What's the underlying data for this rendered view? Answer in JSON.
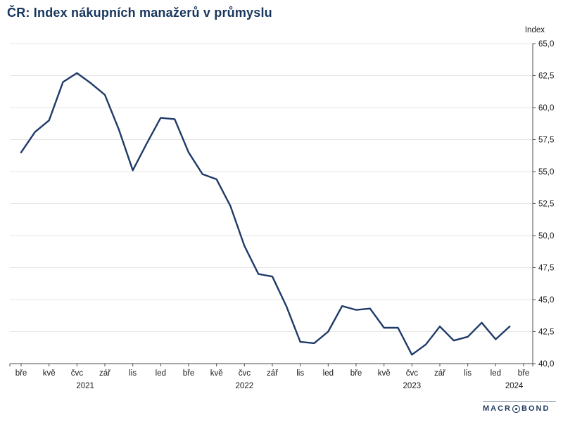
{
  "header": {
    "title": "ČR: Index nákupních manažerů v průmyslu",
    "axis_title": "Index"
  },
  "chart_data": {
    "type": "line",
    "title": "ČR: Index nákupních manažerů v průmyslu",
    "xlabel": "",
    "ylabel": "Index",
    "ylim": [
      40,
      65
    ],
    "grid": true,
    "legend_position": "none",
    "line_color": "#1f3a68",
    "x": [
      "2021-03",
      "2021-04",
      "2021-05",
      "2021-06",
      "2021-07",
      "2021-08",
      "2021-09",
      "2021-10",
      "2021-11",
      "2021-12",
      "2022-01",
      "2022-02",
      "2022-03",
      "2022-04",
      "2022-05",
      "2022-06",
      "2022-07",
      "2022-08",
      "2022-09",
      "2022-10",
      "2022-11",
      "2022-12",
      "2023-01",
      "2023-02",
      "2023-03",
      "2023-04",
      "2023-05",
      "2023-06",
      "2023-07",
      "2023-08",
      "2023-09",
      "2023-10",
      "2023-11",
      "2023-12",
      "2024-01",
      "2024-02"
    ],
    "series": [
      {
        "name": "Index nákupních manažerů v průmyslu",
        "color": "#1f3a68",
        "values": [
          56.5,
          58.1,
          59.0,
          62.0,
          62.7,
          61.9,
          61.0,
          58.3,
          55.1,
          57.2,
          59.2,
          59.1,
          56.5,
          54.8,
          54.4,
          52.3,
          49.2,
          47.0,
          46.8,
          44.5,
          41.7,
          41.6,
          42.5,
          44.5,
          44.2,
          44.3,
          42.8,
          42.8,
          40.7,
          41.5,
          42.9,
          41.8,
          42.1,
          43.2,
          41.9,
          42.9
        ]
      }
    ],
    "x_tick_labels": [
      "bře",
      "kvě",
      "čvc",
      "zář",
      "lis",
      "led",
      "bře",
      "kvě",
      "čvc",
      "zář",
      "lis",
      "led",
      "bře",
      "kvě",
      "čvc",
      "zář",
      "lis",
      "led",
      "bře"
    ],
    "year_labels": [
      "2021",
      "2022",
      "2023",
      "2024"
    ],
    "y_ticks": [
      {
        "value": 65.0,
        "label": "65,0"
      },
      {
        "value": 62.5,
        "label": "62,5"
      },
      {
        "value": 60.0,
        "label": "60,0"
      },
      {
        "value": 57.5,
        "label": "57,5"
      },
      {
        "value": 55.0,
        "label": "55,0"
      },
      {
        "value": 52.5,
        "label": "52,5"
      },
      {
        "value": 50.0,
        "label": "50,0"
      },
      {
        "value": 47.5,
        "label": "47,5"
      },
      {
        "value": 45.0,
        "label": "45,0"
      },
      {
        "value": 42.5,
        "label": "42,5"
      },
      {
        "value": 40.0,
        "label": "40,0"
      }
    ]
  },
  "footer": {
    "logo_left": "MACR",
    "logo_right": "BOND",
    "logo_o_icon": "circle-dot"
  }
}
